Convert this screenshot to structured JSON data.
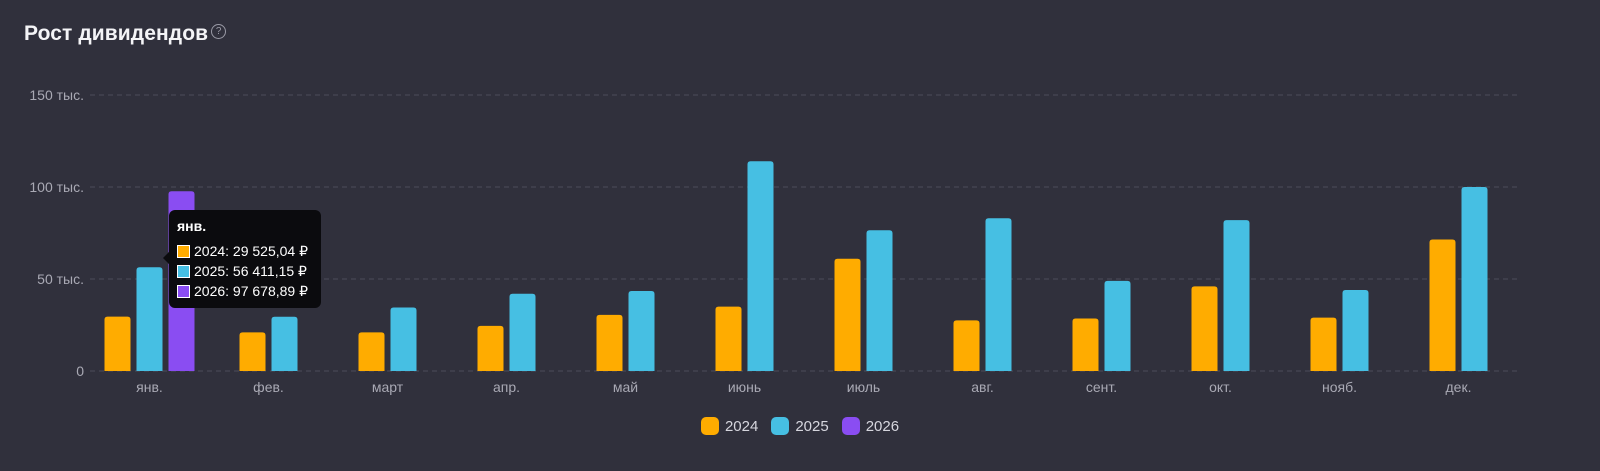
{
  "header": {
    "title": "Рост дивидендов",
    "help_icon": "question-circle-icon"
  },
  "colors": {
    "2024": "#ffac00",
    "2025": "#46bfe3",
    "2026": "#8a4df2",
    "grid": "#4d4d5a",
    "background": "#30303c"
  },
  "chart_data": {
    "type": "bar",
    "title": "Рост дивидендов",
    "xlabel": "",
    "ylabel": "",
    "ylim": [
      0,
      150000
    ],
    "yticks": [
      {
        "value": 0,
        "label": "0"
      },
      {
        "value": 50000,
        "label": "50 тыс."
      },
      {
        "value": 100000,
        "label": "100 тыс."
      },
      {
        "value": 150000,
        "label": "150 тыс."
      }
    ],
    "grid": true,
    "legend_position": "bottom",
    "categories": [
      "янв.",
      "фев.",
      "март",
      "апр.",
      "май",
      "июнь",
      "июль",
      "авг.",
      "сент.",
      "окт.",
      "нояб.",
      "дек."
    ],
    "series": [
      {
        "name": "2024",
        "color": "#ffac00",
        "values": [
          29525.04,
          21000,
          21000,
          24500,
          30500,
          35000,
          61000,
          27500,
          28500,
          46000,
          29000,
          71500
        ]
      },
      {
        "name": "2025",
        "color": "#46bfe3",
        "values": [
          56411.15,
          29500,
          34500,
          42000,
          43500,
          114000,
          76500,
          83000,
          49000,
          82000,
          44000,
          100000
        ]
      },
      {
        "name": "2026",
        "color": "#8a4df2",
        "values": [
          97678.89,
          null,
          null,
          null,
          null,
          null,
          null,
          null,
          null,
          null,
          null,
          null
        ]
      }
    ]
  },
  "tooltip": {
    "title": "янв.",
    "rows": [
      {
        "text": "2024: 29 525,04 ₽",
        "color": "#ffac00"
      },
      {
        "text": "2025: 56 411,15 ₽",
        "color": "#46bfe3"
      },
      {
        "text": "2026: 97 678,89 ₽",
        "color": "#8a4df2"
      }
    ]
  },
  "legend": [
    {
      "label": "2024",
      "color": "#ffac00"
    },
    {
      "label": "2025",
      "color": "#46bfe3"
    },
    {
      "label": "2026",
      "color": "#8a4df2"
    }
  ]
}
